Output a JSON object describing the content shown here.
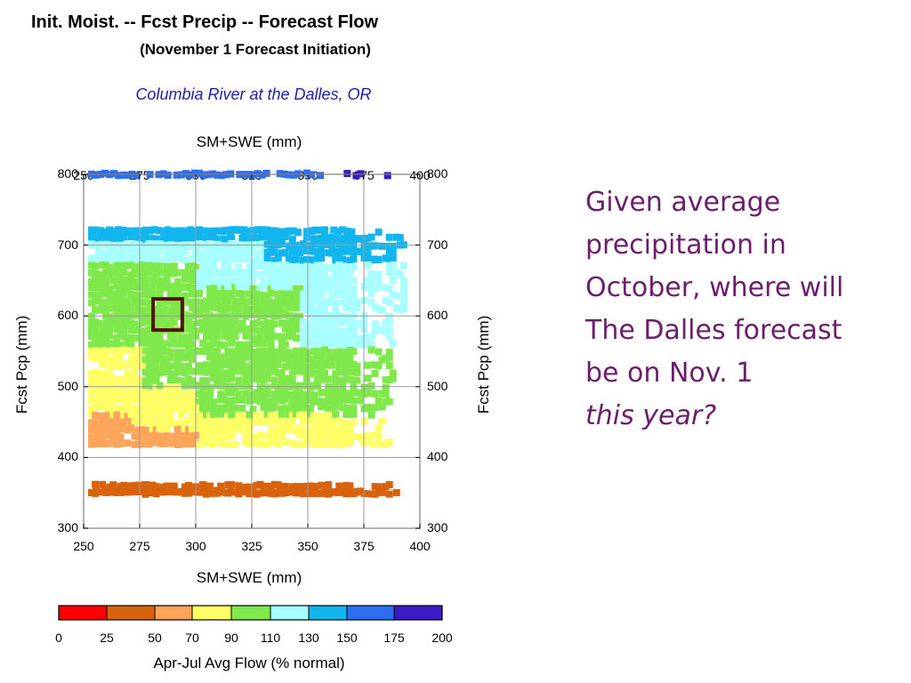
{
  "chart_data": {
    "type": "heatmap",
    "title": "Init. Moist. -- Fcst Precip -- Forecast Flow",
    "subtitle": "(November 1 Forecast Initiation)",
    "location": "Columbia River at the Dalles, OR",
    "xlabel": "SM+SWE (mm)",
    "ylabel": "Fcst Pcp (mm)",
    "xlim": [
      250,
      400
    ],
    "ylim": [
      300,
      800
    ],
    "xticks": [
      250,
      275,
      300,
      325,
      350,
      375,
      400
    ],
    "yticks": [
      300,
      400,
      500,
      600,
      700,
      800
    ],
    "grid": true,
    "colorbar": {
      "label": "Apr-Jul Avg Flow (% normal)",
      "boundaries": [
        0,
        25,
        50,
        70,
        90,
        110,
        130,
        150,
        175,
        200
      ],
      "colors": [
        "#ff0000",
        "#d9620d",
        "#fca55a",
        "#ffff66",
        "#7fe84a",
        "#a8ffff",
        "#12b6ee",
        "#2c6ef0",
        "#3b1ac4"
      ]
    },
    "highlight_box": {
      "x": [
        281,
        294
      ],
      "y": [
        580,
        624
      ],
      "color": "#5a1208"
    },
    "bands": [
      {
        "y": 800,
        "x_range": [
          252,
          385
        ],
        "flow_class": 8,
        "stops": [
          {
            "x": 252,
            "c": 7
          }
        ],
        "top_stops": [
          {
            "x": 360,
            "c": 8
          }
        ]
      },
      {
        "y": 720,
        "x_range": [
          252,
          385
        ],
        "flow_class": 6
      }
    ]
  },
  "note": {
    "line1": "Given average",
    "line2": "precipitation in",
    "line3": "October, where will",
    "line4": "The Dalles forecast",
    "line5": "be on Nov. 1",
    "line6": "this year?"
  }
}
